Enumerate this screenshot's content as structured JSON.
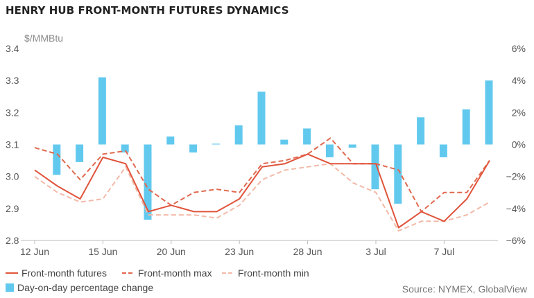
{
  "title": "HENRY HUB FRONT-MONTH FUTURES DYNAMICS",
  "source": "Source: NYMEX, GlobalView",
  "chart_data": {
    "type": "line",
    "left_unit": "$/MMBtu",
    "left_axis": {
      "min": 2.8,
      "max": 3.4,
      "ticks": [
        "3.4",
        "3.3",
        "3.2",
        "3.1",
        "3.0",
        "2.9",
        "2.8"
      ],
      "tick_values": [
        3.4,
        3.3,
        3.2,
        3.1,
        3.0,
        2.9,
        2.8
      ]
    },
    "right_axis": {
      "min": -6,
      "max": 6,
      "ticks": [
        "6%",
        "4%",
        "2%",
        "0%",
        "−2%",
        "−4%",
        "−6%"
      ],
      "tick_values": [
        6,
        4,
        2,
        0,
        -2,
        -4,
        -6
      ]
    },
    "x_labels": [
      {
        "text": "12 Jun",
        "index": 0
      },
      {
        "text": "15 Jun",
        "index": 3
      },
      {
        "text": "20 Jun",
        "index": 6
      },
      {
        "text": "23 Jun",
        "index": 9
      },
      {
        "text": "28 Jun",
        "index": 12
      },
      {
        "text": "3 Jul",
        "index": 15
      },
      {
        "text": "7 Jul",
        "index": 18
      }
    ],
    "grid": false,
    "legend_position": "bottom",
    "series": [
      {
        "name": "Front-month futures",
        "kind": "line",
        "axis": "left",
        "color": "#e0533a",
        "dash": "solid",
        "values": [
          3.02,
          2.97,
          2.93,
          3.06,
          3.04,
          2.89,
          2.91,
          2.89,
          2.89,
          2.93,
          3.03,
          3.04,
          3.07,
          3.04,
          3.04,
          3.04,
          2.84,
          2.89,
          2.86,
          2.93,
          3.05
        ]
      },
      {
        "name": "Front-month max",
        "kind": "line",
        "axis": "left",
        "color": "#e0684e",
        "dash": "dashed",
        "values": [
          3.09,
          3.07,
          2.99,
          3.07,
          3.08,
          2.96,
          2.91,
          2.95,
          2.96,
          2.95,
          3.04,
          3.05,
          3.07,
          3.12,
          3.04,
          3.04,
          3.02,
          2.89,
          2.95,
          2.95,
          3.05
        ]
      },
      {
        "name": "Front-month min",
        "kind": "line",
        "axis": "left",
        "color": "#f2b9a8",
        "dash": "dashed",
        "values": [
          3.0,
          2.95,
          2.92,
          2.93,
          3.03,
          2.88,
          2.88,
          2.88,
          2.87,
          2.91,
          2.99,
          3.02,
          3.03,
          3.04,
          2.98,
          2.95,
          2.83,
          2.86,
          2.86,
          2.88,
          2.92
        ]
      },
      {
        "name": "Day-on-day percentage change",
        "kind": "bar",
        "axis": "right",
        "color": "#62c9ee",
        "values": [
          -1.9,
          -1.1,
          4.2,
          -0.5,
          -4.7,
          0.5,
          -0.5,
          0.05,
          1.2,
          3.3,
          0.3,
          1.0,
          -0.8,
          -0.2,
          -2.8,
          -3.7,
          1.7,
          -0.8,
          2.2,
          4.0
        ]
      }
    ]
  }
}
